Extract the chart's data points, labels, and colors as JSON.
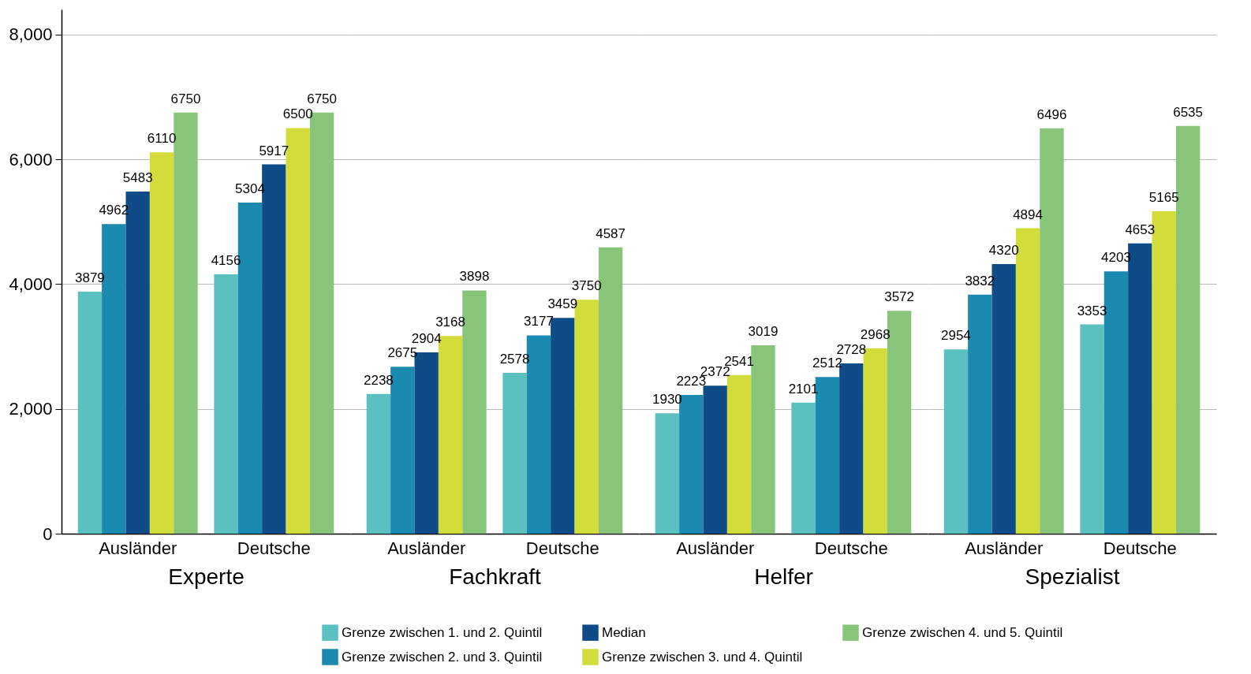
{
  "chart_data": {
    "type": "bar",
    "categories": [
      "Ausländer",
      "Deutsche",
      "Ausländer",
      "Deutsche",
      "Ausländer",
      "Deutsche",
      "Ausländer",
      "Deutsche"
    ],
    "annotations": [
      "Experte",
      "Fachkraft",
      "Helfer",
      "Spezialist"
    ],
    "series": [
      {
        "name": "Grenze zwischen 1. und 2. Quintil",
        "color": "#5bc0c0",
        "values": [
          3879,
          4156,
          2238,
          2578,
          1930,
          2101,
          2954,
          3353
        ]
      },
      {
        "name": "Grenze zwischen 2. und 3. Quintil",
        "color": "#1a8ab0",
        "values": [
          4962,
          5304,
          2675,
          3177,
          2223,
          2512,
          3832,
          4203
        ]
      },
      {
        "name": "Median",
        "color": "#0f4c87",
        "values": [
          5483,
          5917,
          2904,
          3459,
          2372,
          2728,
          4320,
          4653
        ]
      },
      {
        "name": "Grenze zwischen 3. und 4. Quintil",
        "color": "#d2dc3a",
        "values": [
          6110,
          6500,
          3168,
          3750,
          2541,
          2968,
          4894,
          5165
        ]
      },
      {
        "name": "Grenze zwischen 4. und 5. Quintil",
        "color": "#88c57a",
        "values": [
          6750,
          6750,
          3898,
          4587,
          3019,
          3572,
          6496,
          6535
        ]
      }
    ],
    "ylim": [
      0,
      8400
    ],
    "yticks": [
      0,
      {
        "value": 2000,
        "label": "2,000"
      },
      {
        "value": 4000,
        "label": "4,000"
      },
      {
        "value": 6000,
        "label": "6,000"
      },
      {
        "value": 8000,
        "label": "8,000"
      }
    ],
    "grid": "y",
    "legend": "bottom",
    "data_labels": true
  }
}
